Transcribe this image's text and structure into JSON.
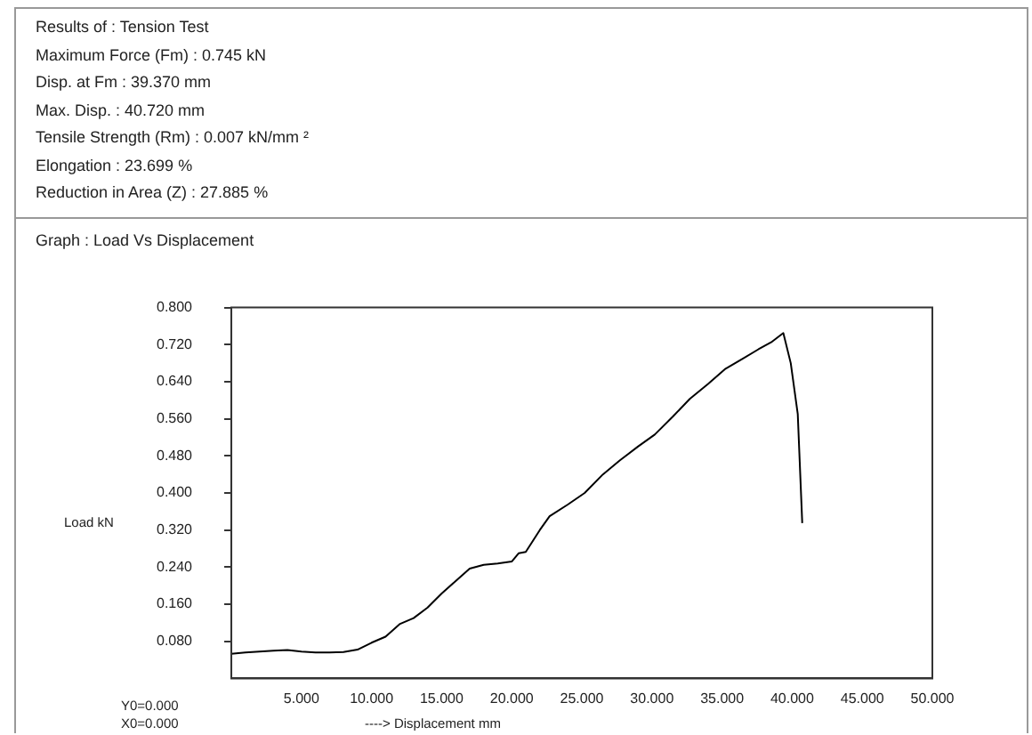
{
  "chart_data": {
    "type": "line",
    "title": "Graph : Load Vs Displacement",
    "xlabel": "----> Displacement  mm",
    "ylabel": "Load kN",
    "annotations": [
      "Results of : Tension Test",
      "Maximum Force (Fm) : 0.745  kN",
      "Disp. at Fm : 39.370  mm",
      "Max. Disp. : 40.720  mm",
      "Tensile Strength (Rm) : 0.007  kN/mm ²",
      "Elongation : 23.699  %",
      "Reduction in Area (Z) : 27.885  %",
      "Y0=0.000",
      "X0=0.000"
    ],
    "series": [
      {
        "color": "#000000",
        "x": [
          0,
          1,
          2,
          3,
          4,
          5,
          6,
          7,
          8,
          9,
          10,
          11,
          12,
          13,
          14,
          15,
          16,
          17,
          18,
          19,
          20,
          20.5,
          21,
          22,
          22.7,
          24,
          25.2,
          26.5,
          27.7,
          29,
          30.2,
          31.5,
          32.7,
          34,
          35.2,
          36.5,
          37.6,
          38.5,
          39.37,
          39.9,
          40.4,
          40.72
        ],
        "values": [
          0.053,
          0.056,
          0.058,
          0.06,
          0.061,
          0.058,
          0.056,
          0.056,
          0.057,
          0.062,
          0.077,
          0.09,
          0.117,
          0.13,
          0.153,
          0.183,
          0.21,
          0.237,
          0.245,
          0.248,
          0.252,
          0.27,
          0.273,
          0.32,
          0.35,
          0.375,
          0.4,
          0.44,
          0.47,
          0.5,
          0.526,
          0.565,
          0.603,
          0.635,
          0.667,
          0.69,
          0.71,
          0.725,
          0.745,
          0.68,
          0.57,
          0.335
        ]
      }
    ],
    "xlim": [
      0,
      50
    ],
    "xticks": [
      {
        "value": 5,
        "label": "5.000"
      },
      {
        "value": 10,
        "label": "10.000"
      },
      {
        "value": 15,
        "label": "15.000"
      },
      {
        "value": 20,
        "label": "20.000"
      },
      {
        "value": 25,
        "label": "25.000"
      },
      {
        "value": 30,
        "label": "30.000"
      },
      {
        "value": 35,
        "label": "35.000"
      },
      {
        "value": 40,
        "label": "40.000"
      },
      {
        "value": 45,
        "label": "45.000"
      },
      {
        "value": 50,
        "label": "50.000"
      }
    ],
    "ylim": [
      0,
      0.8
    ],
    "yticks": [
      {
        "value": 0.08,
        "label": "0.080"
      },
      {
        "value": 0.16,
        "label": "0.160"
      },
      {
        "value": 0.24,
        "label": "0.240"
      },
      {
        "value": 0.32,
        "label": "0.320"
      },
      {
        "value": 0.4,
        "label": "0.400"
      },
      {
        "value": 0.48,
        "label": "0.480"
      },
      {
        "value": 0.56,
        "label": "0.560"
      },
      {
        "value": 0.64,
        "label": "0.640"
      },
      {
        "value": 0.72,
        "label": "0.720"
      },
      {
        "value": 0.8,
        "label": "0.800"
      }
    ],
    "grid": false,
    "legend": false,
    "marker": "none",
    "line_style": "solid"
  }
}
